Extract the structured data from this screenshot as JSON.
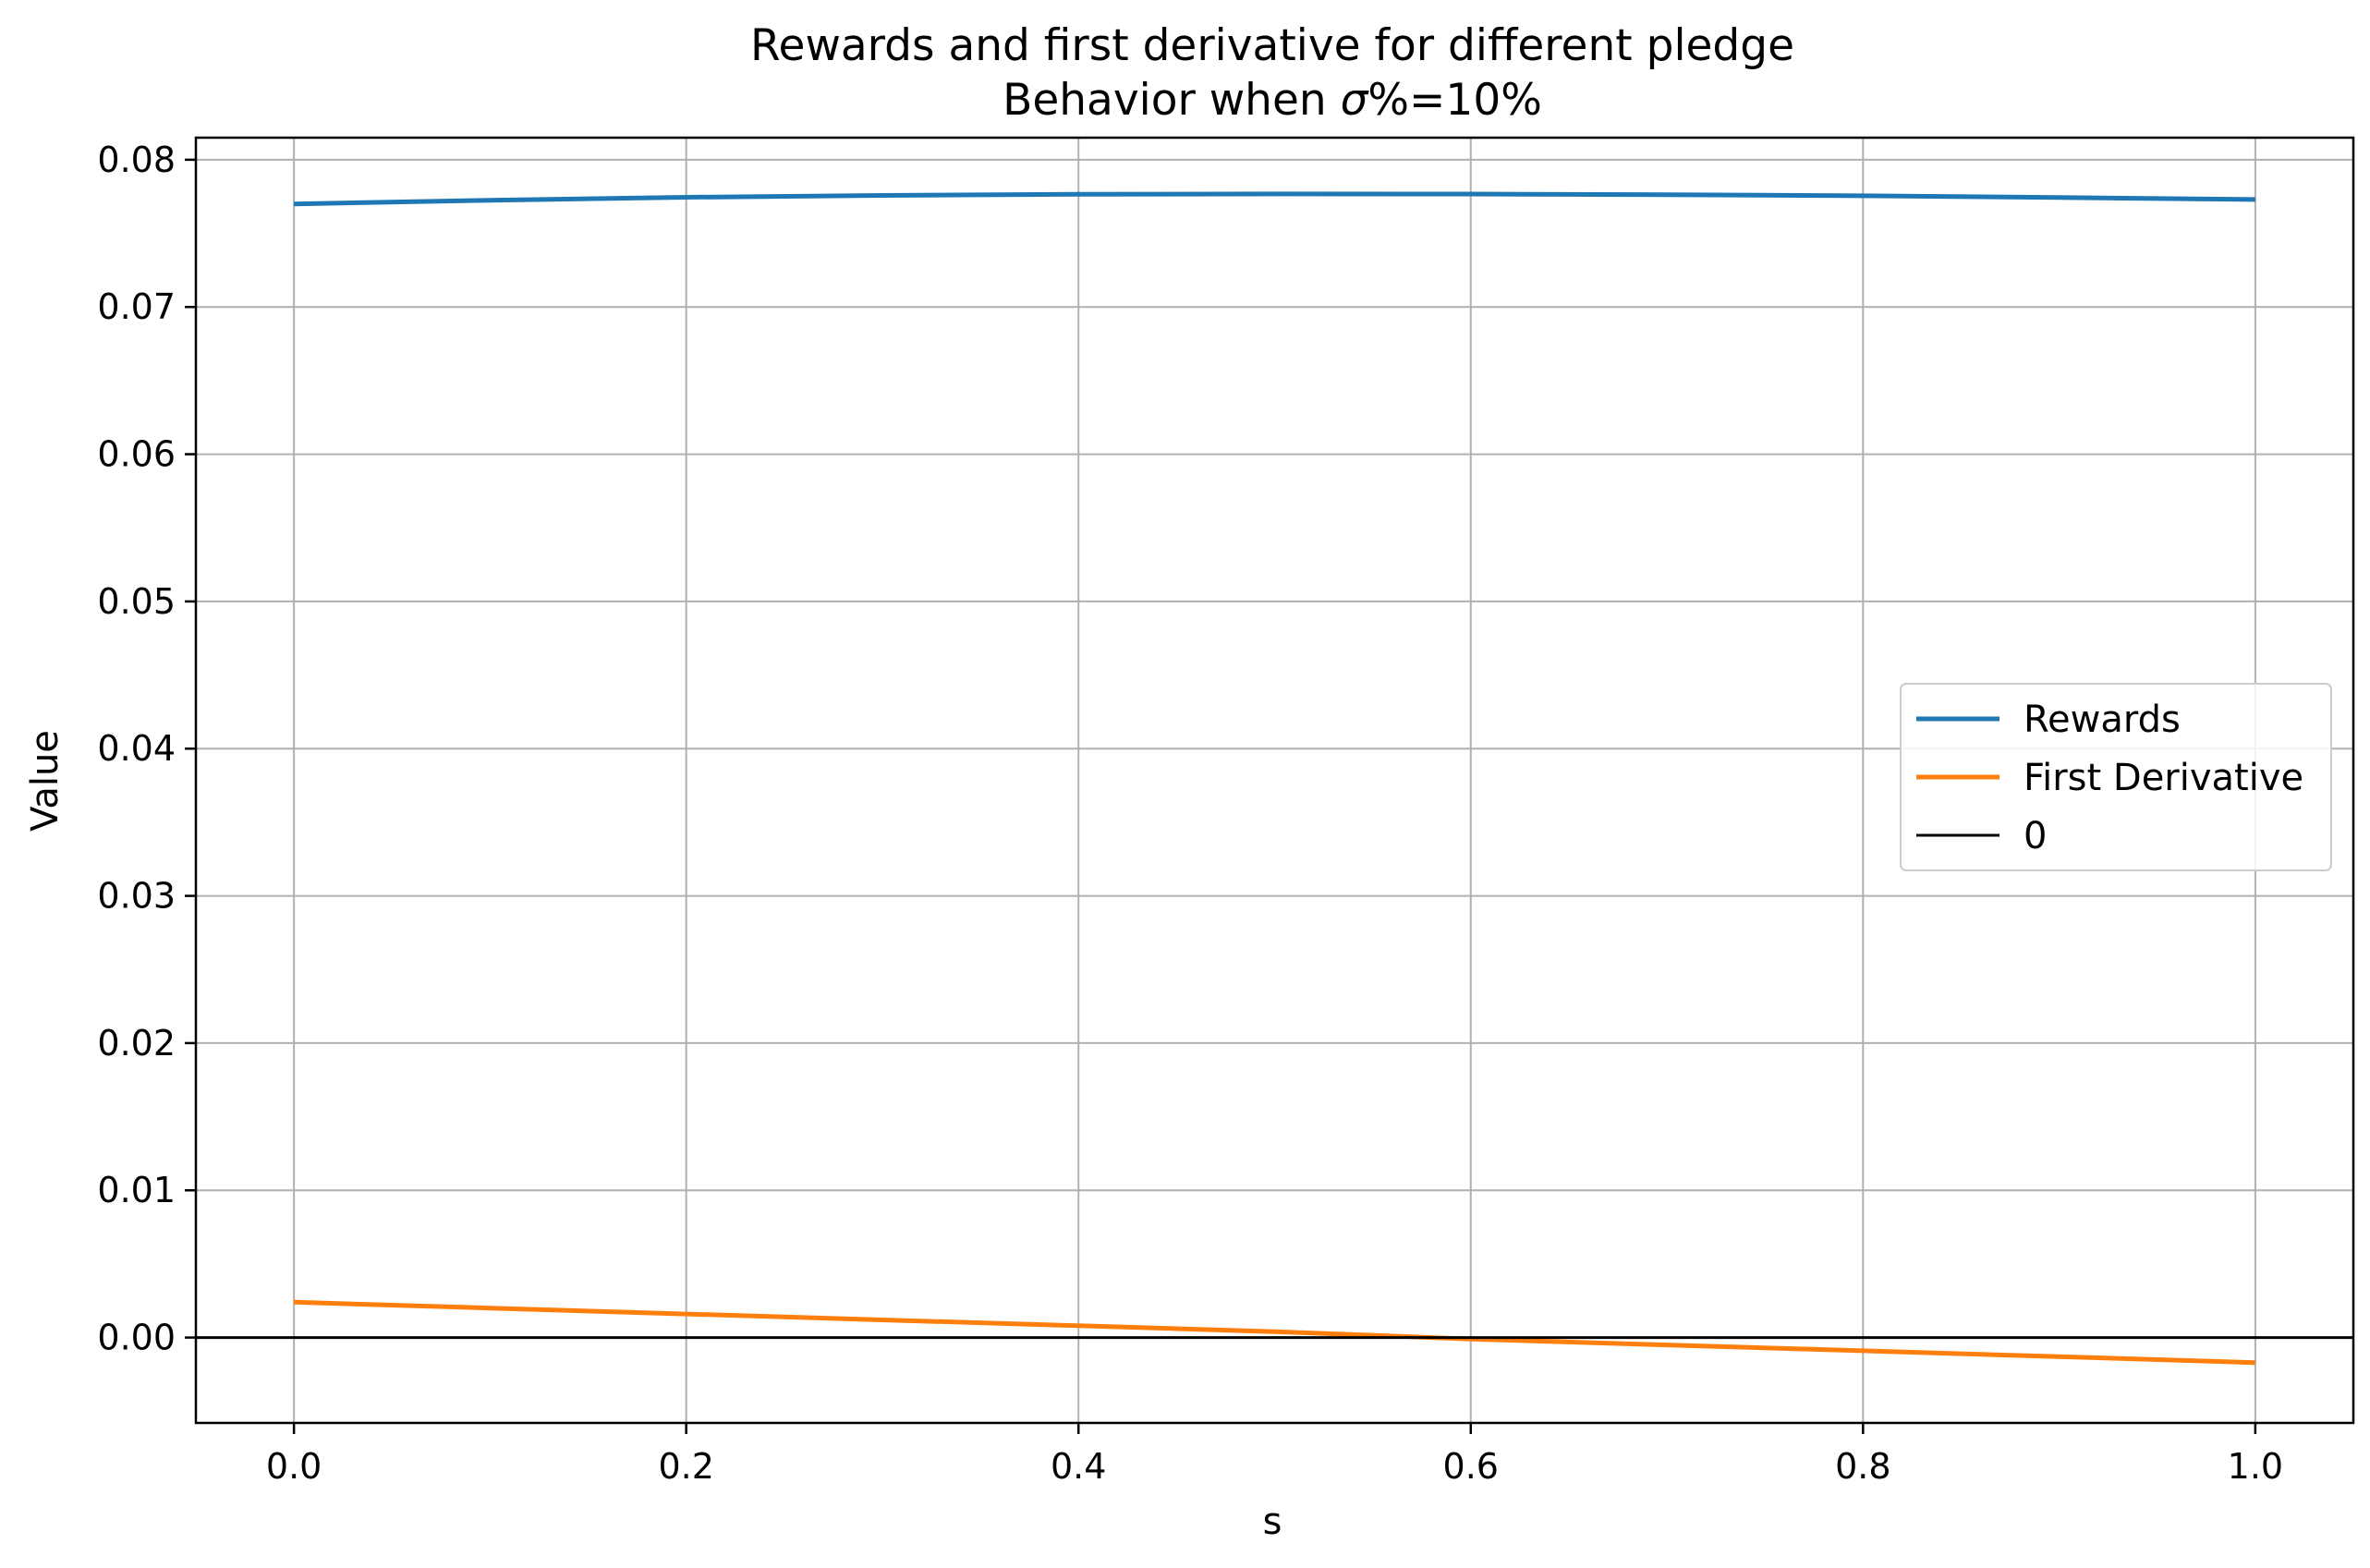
{
  "chart_data": {
    "type": "line",
    "title_line1": "Rewards and first derivative for different pledge",
    "title_line2_prefix": "Behavior when ",
    "title_line2_symbol": "σ",
    "title_line2_suffix": "%=10%",
    "xlabel": "s",
    "ylabel": "Value",
    "xlim": [
      -0.05,
      1.05
    ],
    "ylim": [
      -0.0058,
      0.0815
    ],
    "x_ticks": [
      0.0,
      0.2,
      0.4,
      0.6,
      0.8,
      1.0
    ],
    "x_tick_labels": [
      "0.0",
      "0.2",
      "0.4",
      "0.6",
      "0.8",
      "1.0"
    ],
    "y_ticks": [
      0.0,
      0.01,
      0.02,
      0.03,
      0.04,
      0.05,
      0.06,
      0.07,
      0.08
    ],
    "y_tick_labels": [
      "0.00",
      "0.01",
      "0.02",
      "0.03",
      "0.04",
      "0.05",
      "0.06",
      "0.07",
      "0.08"
    ],
    "grid": true,
    "legend_position": "center-right",
    "x": [
      0.0,
      0.1,
      0.2,
      0.3,
      0.4,
      0.5,
      0.6,
      0.7,
      0.8,
      0.9,
      1.0
    ],
    "series": [
      {
        "name": "Rewards",
        "color": "#1f77b4",
        "values": [
          0.077,
          0.07725,
          0.07745,
          0.07758,
          0.07765,
          0.07768,
          0.07767,
          0.07763,
          0.07755,
          0.07743,
          0.0773
        ]
      },
      {
        "name": "First Derivative",
        "color": "#ff7f0e",
        "values": [
          0.0024,
          0.002,
          0.0016,
          0.0012,
          0.0008,
          0.0004,
          -0.0001,
          -0.0005,
          -0.0009,
          -0.0013,
          -0.0017
        ]
      },
      {
        "name": "0",
        "color": "#000000",
        "values": [
          0.0,
          0.0,
          0.0,
          0.0,
          0.0,
          0.0,
          0.0,
          0.0,
          0.0,
          0.0,
          0.0
        ]
      }
    ]
  },
  "colors": {
    "grid": "#b0b0b0",
    "axes": "#000000",
    "legend_border": "#cccccc"
  }
}
